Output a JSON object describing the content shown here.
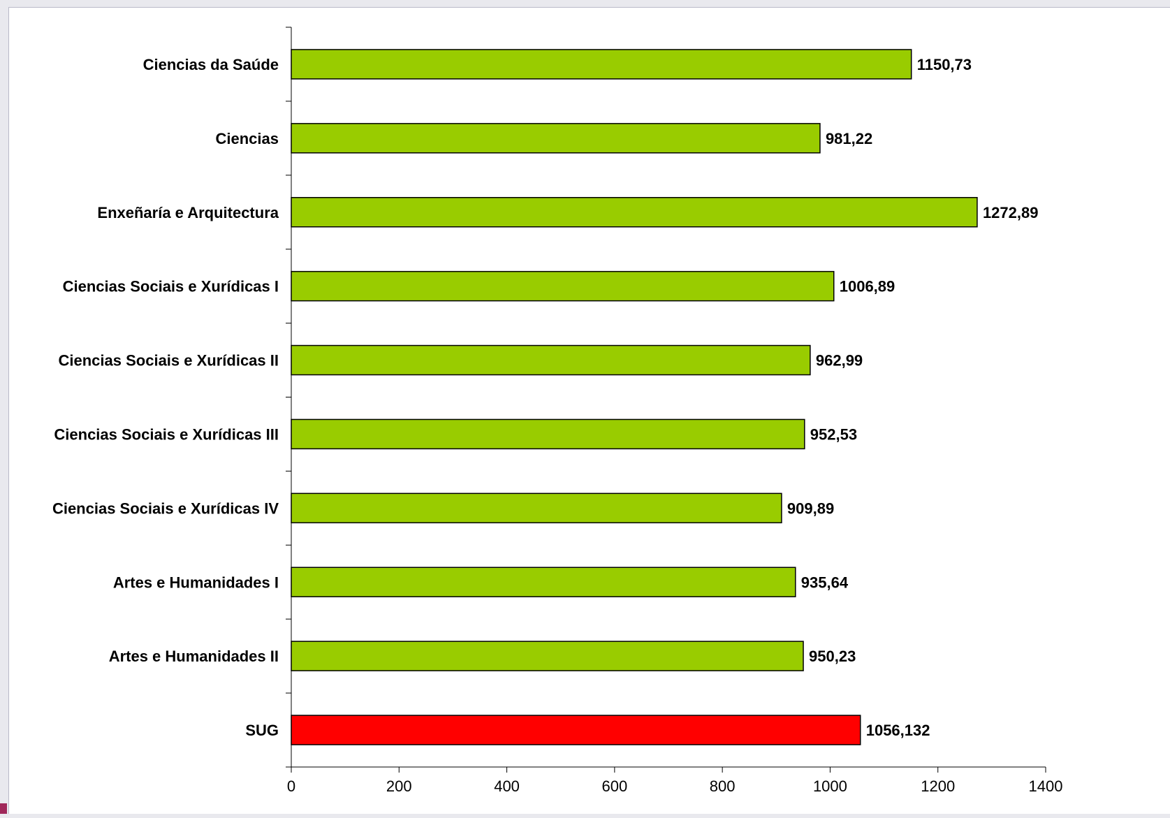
{
  "chart_data": {
    "type": "bar",
    "orientation": "horizontal",
    "categories": [
      "Ciencias da Saúde",
      "Ciencias",
      "Enxeñaría e Arquitectura",
      "Ciencias Sociais e Xurídicas I",
      "Ciencias Sociais e Xurídicas II",
      "Ciencias Sociais e Xurídicas III",
      "Ciencias Sociais e Xurídicas IV",
      "Artes e Humanidades I",
      "Artes e Humanidades II",
      "SUG"
    ],
    "values": [
      1150.73,
      981.22,
      1272.89,
      1006.89,
      962.99,
      952.53,
      909.89,
      935.64,
      950.23,
      1056.132
    ],
    "value_labels": [
      "1150,73",
      "981,22",
      "1272,89",
      "1006,89",
      "962,99",
      "952,53",
      "909,89",
      "935,64",
      "950,23",
      "1056,132"
    ],
    "bar_colors": [
      "#99cc00",
      "#99cc00",
      "#99cc00",
      "#99cc00",
      "#99cc00",
      "#99cc00",
      "#99cc00",
      "#99cc00",
      "#99cc00",
      "#ff0000"
    ],
    "xlim": [
      0,
      1400
    ],
    "xticks": [
      0,
      200,
      400,
      600,
      800,
      1000,
      1200,
      1400
    ],
    "title": "",
    "xlabel": "",
    "ylabel": "",
    "grid": false,
    "legend": "none"
  },
  "colors": {
    "bar_default": "#99cc00",
    "bar_highlight": "#ff0000",
    "bar_outline": "#000000",
    "accent": "#a0285a"
  }
}
